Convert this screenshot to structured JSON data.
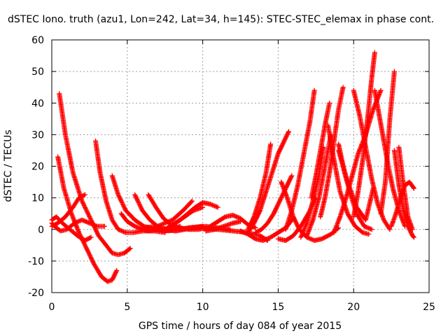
{
  "chart_data": {
    "type": "scatter",
    "title": "dSTEC Iono. truth (azu1, Lon=242, Lat=34, h=145): STEC-STEC_elemax in phase cont.",
    "xlabel": "GPS time / hours of day 084 of year 2015",
    "ylabel": "dSTEC  / TECUs",
    "xlim": [
      0,
      25
    ],
    "ylim": [
      -20,
      60
    ],
    "x_ticks": [
      "0",
      "5",
      "10",
      "15",
      "20",
      "25"
    ],
    "y_ticks": [
      "-20",
      "-10",
      "0",
      "10",
      "20",
      "30",
      "40",
      "50",
      "60"
    ],
    "grid": true,
    "marker": "plus",
    "color": "#ff0000",
    "series": [
      {
        "x": [
          0.5,
          0.9,
          1.4,
          2.0,
          2.6,
          3.1,
          3.6,
          4.0,
          4.4,
          4.8,
          5.2
        ],
        "values": [
          43,
          30,
          18,
          9,
          3,
          -2,
          -5,
          -7.5,
          -8,
          -7.5,
          -6
        ]
      },
      {
        "x": [
          0.4,
          0.8,
          1.3,
          1.8,
          2.3,
          2.8,
          3.3,
          3.7,
          4.0,
          4.3
        ],
        "values": [
          23,
          13,
          5,
          -1,
          -6,
          -11,
          -15,
          -16.5,
          -16,
          -13
        ]
      },
      {
        "x": [
          0.0,
          0.3,
          0.6,
          1.0,
          1.5,
          2.0,
          2.5,
          3.0,
          3.5
        ],
        "values": [
          2,
          0.5,
          -0.5,
          0,
          2,
          3,
          2,
          1,
          1
        ]
      },
      {
        "x": [
          0.0,
          0.4,
          0.9,
          1.4,
          1.8,
          2.2
        ],
        "values": [
          1,
          2,
          4,
          7,
          10,
          11
        ]
      },
      {
        "x": [
          0.0,
          0.3,
          0.7,
          1.2,
          1.7,
          2.2,
          2.6
        ],
        "values": [
          3,
          4,
          2,
          0,
          -2,
          -3.5,
          -2.5
        ]
      },
      {
        "x": [
          2.9,
          3.2,
          3.6,
          4.0,
          4.4,
          4.9,
          5.4,
          6.0,
          6.8,
          7.5
        ],
        "values": [
          28,
          18,
          9,
          3,
          0,
          -1,
          -1,
          -0.5,
          -0.5,
          -1
        ]
      },
      {
        "x": [
          4.0,
          4.4,
          4.9,
          5.5,
          6.1,
          6.8,
          7.5,
          8.2,
          9.0,
          10.0
        ],
        "values": [
          17,
          11,
          6,
          3,
          1,
          0,
          -0.5,
          -0.3,
          0.5,
          1
        ]
      },
      {
        "x": [
          4.6,
          5.0,
          5.5,
          6.0,
          6.5,
          7.0,
          7.5,
          8.0,
          8.5
        ],
        "values": [
          5,
          2.5,
          1,
          0,
          -0.5,
          0,
          -0.5,
          0,
          1
        ]
      },
      {
        "x": [
          5.5,
          6.0,
          6.5,
          7.0,
          7.6,
          8.2,
          8.8,
          9.5,
          10.2,
          11.0
        ],
        "values": [
          11,
          6,
          3,
          1,
          0,
          -0.5,
          0,
          0.5,
          1,
          0.5
        ]
      },
      {
        "x": [
          6.4,
          6.9,
          7.4,
          7.9,
          8.5,
          9.1,
          9.7,
          10.3,
          11.0,
          11.8
        ],
        "values": [
          11,
          7,
          3.5,
          1.5,
          0.5,
          0,
          0,
          0.5,
          0.5,
          0
        ]
      },
      {
        "x": [
          7.5,
          8.0,
          8.5,
          9.0,
          9.5,
          10.0,
          10.5,
          11.0
        ],
        "values": [
          0,
          1.5,
          3,
          5,
          7,
          8.5,
          8,
          7
        ]
      },
      {
        "x": [
          7.0,
          7.6,
          8.2,
          8.8,
          9.4,
          10.0
        ],
        "values": [
          1,
          0,
          2,
          4,
          6,
          7
        ]
      },
      {
        "x": [
          6.0,
          7.0,
          8.0,
          8.7,
          9.3
        ],
        "values": [
          0.5,
          1,
          3,
          6,
          9
        ]
      },
      {
        "x": [
          10.5,
          11.0,
          11.5,
          12.0,
          12.5,
          13.0,
          13.5
        ],
        "values": [
          1,
          2.5,
          4,
          4.5,
          3.5,
          1.5,
          0.5
        ]
      },
      {
        "x": [
          10.2,
          10.8,
          11.4,
          12.0,
          12.5
        ],
        "values": [
          -0.5,
          0,
          1,
          2,
          2.5
        ]
      },
      {
        "x": [
          9.0,
          10.0,
          11.0,
          12.0,
          13.0,
          13.8,
          14.3
        ],
        "values": [
          0.5,
          0.5,
          0,
          -0.5,
          -1,
          -2,
          -3.5
        ]
      },
      {
        "x": [
          12.5,
          13.0,
          13.5,
          14.0,
          14.5,
          15.0,
          15.5,
          16.0
        ],
        "values": [
          -0.5,
          -1.5,
          -3,
          -3.5,
          -2.5,
          -1,
          0.5,
          3.5
        ]
      },
      {
        "x": [
          13.0,
          13.4,
          13.8,
          14.2,
          14.6,
          15.0,
          15.4,
          15.7
        ],
        "values": [
          -1,
          2,
          6,
          12,
          18,
          24,
          28,
          31
        ]
      },
      {
        "x": [
          13.0,
          13.4,
          13.8,
          14.2,
          14.5
        ],
        "values": [
          0,
          4,
          10,
          18,
          27
        ]
      },
      {
        "x": [
          13.5,
          13.9,
          14.3,
          14.7,
          15.1,
          15.5,
          15.9
        ],
        "values": [
          -1,
          0,
          2,
          5,
          9,
          13,
          17
        ]
      },
      {
        "x": [
          15.2,
          15.6,
          16.0,
          16.4,
          16.9,
          17.4,
          17.9,
          18.5,
          19.0
        ],
        "values": [
          15,
          10,
          4,
          0,
          -2.5,
          -3.5,
          -3,
          -1.5,
          0.5
        ]
      },
      {
        "x": [
          15.0,
          15.5,
          16.0,
          16.5,
          17.0,
          17.5
        ],
        "values": [
          -3,
          -3.5,
          -2,
          1,
          5,
          10
        ]
      },
      {
        "x": [
          15.5,
          15.9,
          16.3,
          16.7,
          17.1,
          17.4
        ],
        "values": [
          0,
          6,
          14,
          24,
          34,
          44
        ]
      },
      {
        "x": [
          16.5,
          16.9,
          17.3,
          17.7,
          18.0
        ],
        "values": [
          -2.5,
          2,
          9,
          17,
          26
        ]
      },
      {
        "x": [
          16.9,
          17.3,
          17.7,
          18.1,
          18.5
        ],
        "values": [
          -2,
          3,
          10,
          20,
          30
        ]
      },
      {
        "x": [
          17.2,
          17.5,
          17.8,
          18.1,
          18.4
        ],
        "values": [
          10,
          17,
          25,
          33,
          40
        ]
      },
      {
        "x": [
          17.8,
          18.1,
          18.4,
          18.7,
          19.0,
          19.3
        ],
        "values": [
          4,
          10,
          18,
          28,
          38,
          45
        ]
      },
      {
        "x": [
          18.3,
          18.7,
          19.1,
          19.6,
          20.1,
          20.6,
          21.0
        ],
        "values": [
          33,
          22,
          12,
          5,
          1,
          -1,
          -1.5
        ]
      },
      {
        "x": [
          18.7,
          19.1,
          19.5,
          19.9,
          20.3,
          20.8,
          21.3,
          21.8
        ],
        "values": [
          -1,
          4,
          10,
          17,
          24,
          30,
          38,
          44
        ]
      },
      {
        "x": [
          19.0,
          19.4,
          19.8,
          20.2,
          20.7,
          21.2
        ],
        "values": [
          27,
          18,
          11,
          5,
          1,
          0
        ]
      },
      {
        "x": [
          20.0,
          20.4,
          20.8,
          21.2,
          21.6,
          22.0,
          22.4
        ],
        "values": [
          44,
          36,
          26,
          16,
          8,
          3,
          0
        ]
      },
      {
        "x": [
          20.0,
          20.3,
          20.6,
          20.9,
          21.2,
          21.4
        ],
        "values": [
          4,
          12,
          22,
          34,
          48,
          56
        ]
      },
      {
        "x": [
          21.4,
          21.7,
          22.0,
          22.3,
          22.6,
          23.0,
          23.4
        ],
        "values": [
          44,
          36,
          28,
          20,
          13,
          6,
          1
        ]
      },
      {
        "x": [
          21.8,
          22.1,
          22.4,
          22.7
        ],
        "values": [
          5,
          15,
          35,
          50
        ]
      },
      {
        "x": [
          22.7,
          23.0,
          23.3,
          23.6,
          23.9,
          24.0
        ],
        "values": [
          25,
          14,
          6,
          1,
          -2,
          -2.5
        ]
      },
      {
        "x": [
          22.5,
          22.8,
          23.1,
          23.4,
          23.7,
          24.0
        ],
        "values": [
          1,
          5,
          10,
          14,
          15,
          13
        ]
      },
      {
        "x": [
          23.0,
          23.3,
          23.6,
          23.9
        ],
        "values": [
          26,
          14,
          4,
          0
        ]
      },
      {
        "x": [
          19.0,
          19.6,
          20.2,
          20.8,
          21.3
        ],
        "values": [
          25,
          15,
          7,
          3,
          13
        ]
      }
    ]
  }
}
